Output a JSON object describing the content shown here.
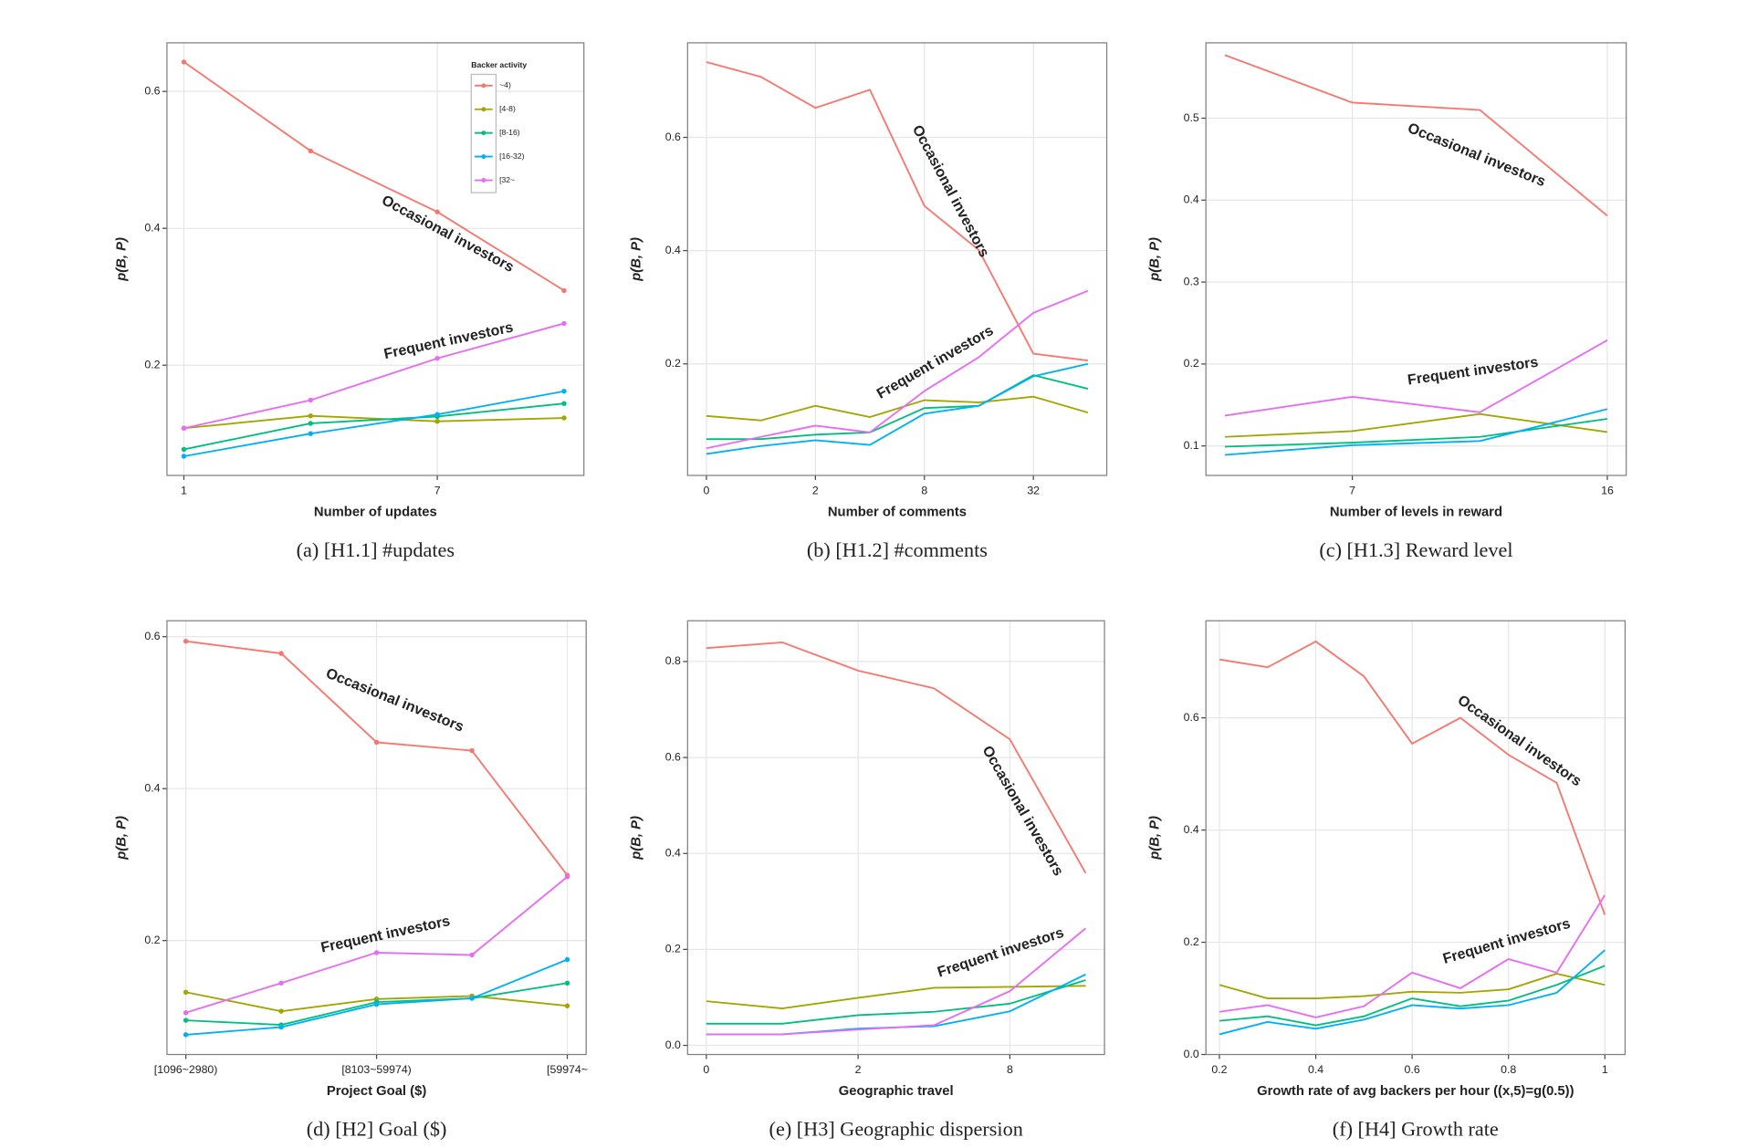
{
  "chart_data": [
    {
      "type": "line",
      "caption": "(a) [H1.1] #updates",
      "xlabel": "Number of updates",
      "ylabel": "p(B, P)",
      "x": [
        1,
        4,
        7,
        10
      ],
      "xlim": [
        0.6,
        10.47
      ],
      "xticks": [
        1,
        7
      ],
      "ylim": [
        0.039,
        0.671
      ],
      "yticks": [
        0.2,
        0.4,
        0.6
      ],
      "grid": true,
      "markers": true,
      "legend": {
        "title": "Backer activity",
        "position": "top-right"
      },
      "annotations": [
        "Occasional investors",
        "Frequent investors"
      ],
      "series": [
        {
          "name": "~4)",
          "color": "#f8766d",
          "values": [
            0.643,
            0.513,
            0.424,
            0.309
          ]
        },
        {
          "name": "[4-8)",
          "color": "#a3a500",
          "values": [
            0.108,
            0.126,
            0.118,
            0.123
          ]
        },
        {
          "name": "[8-16)",
          "color": "#00bf7d",
          "values": [
            0.077,
            0.115,
            0.125,
            0.144
          ]
        },
        {
          "name": "[16-32)",
          "color": "#00b0f6",
          "values": [
            0.067,
            0.1,
            0.128,
            0.162
          ]
        },
        {
          "name": "[32~",
          "color": "#e76bf3",
          "values": [
            0.108,
            0.149,
            0.21,
            0.261
          ]
        }
      ]
    },
    {
      "type": "line",
      "caption": "(b) [H1.2] #comments",
      "xlabel": "Number of comments",
      "ylabel": "p(B, P)",
      "categories": [
        "0",
        null,
        "2",
        null,
        "8",
        null,
        "32",
        null
      ],
      "ylim": [
        0.003,
        0.767
      ],
      "yticks": [
        0.2,
        0.4,
        0.6
      ],
      "grid": true,
      "markers": false,
      "annotations": [
        "Occasional investors",
        "Frequent investors"
      ],
      "series": [
        {
          "color": "#f8766d",
          "values": [
            0.733,
            0.707,
            0.652,
            0.684,
            0.479,
            0.401,
            0.218,
            0.206
          ]
        },
        {
          "color": "#a3a500",
          "values": [
            0.108,
            0.1,
            0.126,
            0.106,
            0.136,
            0.132,
            0.142,
            0.114
          ]
        },
        {
          "color": "#00bf7d",
          "values": [
            0.067,
            0.067,
            0.075,
            0.079,
            0.122,
            0.126,
            0.18,
            0.156
          ]
        },
        {
          "color": "#00b0f6",
          "values": [
            0.041,
            0.055,
            0.065,
            0.057,
            0.112,
            0.126,
            0.178,
            0.2
          ]
        },
        {
          "color": "#e76bf3",
          "values": [
            0.051,
            0.071,
            0.091,
            0.079,
            0.152,
            0.212,
            0.29,
            0.329
          ]
        }
      ]
    },
    {
      "type": "line",
      "caption": "(c) [H1.3] Reward level",
      "xlabel": "Number of levels in reward",
      "ylabel": "p(B, P)",
      "categories": [
        null,
        "7",
        null,
        "16"
      ],
      "ylim": [
        0.064,
        0.592
      ],
      "yticks": [
        0.1,
        0.2,
        0.3,
        0.4,
        0.5
      ],
      "grid": true,
      "markers": false,
      "annotations": [
        "Occasional investors",
        "Frequent investors"
      ],
      "series": [
        {
          "color": "#f8766d",
          "values": [
            0.577,
            0.519,
            0.51,
            0.381
          ]
        },
        {
          "color": "#a3a500",
          "values": [
            0.111,
            0.118,
            0.139,
            0.117
          ]
        },
        {
          "color": "#00bf7d",
          "values": [
            0.099,
            0.104,
            0.111,
            0.133
          ]
        },
        {
          "color": "#00b0f6",
          "values": [
            0.089,
            0.101,
            0.106,
            0.145
          ]
        },
        {
          "color": "#e76bf3",
          "values": [
            0.137,
            0.16,
            0.141,
            0.229
          ]
        }
      ]
    },
    {
      "type": "line",
      "caption": "(d) [H2] Goal ($)",
      "xlabel": "Project Goal ($)",
      "ylabel": "p(B, P)",
      "categories": [
        "[1096~2980)",
        null,
        "[8103~59974)",
        null,
        "[59974~"
      ],
      "ylim": [
        0.05,
        0.621
      ],
      "yticks": [
        0.2,
        0.4,
        0.6
      ],
      "grid": true,
      "markers": true,
      "annotations": [
        "Occasional investors",
        "Frequent investors"
      ],
      "series": [
        {
          "color": "#f8766d",
          "values": [
            0.594,
            0.578,
            0.461,
            0.45,
            0.286
          ]
        },
        {
          "color": "#a3a500",
          "values": [
            0.132,
            0.107,
            0.123,
            0.127,
            0.114
          ]
        },
        {
          "color": "#00bf7d",
          "values": [
            0.095,
            0.089,
            0.119,
            0.124,
            0.144
          ]
        },
        {
          "color": "#00b0f6",
          "values": [
            0.076,
            0.086,
            0.116,
            0.124,
            0.175
          ]
        },
        {
          "color": "#e76bf3",
          "values": [
            0.105,
            0.144,
            0.184,
            0.181,
            0.284
          ]
        }
      ]
    },
    {
      "type": "line",
      "caption": "(e) [H3] Geographic dispersion",
      "xlabel": "Geographic travel",
      "ylabel": "p(B, P)",
      "categories": [
        "0",
        null,
        "2",
        null,
        "8",
        null
      ],
      "ylim": [
        -0.019,
        0.885
      ],
      "yticks": [
        {
          "value": 0,
          "label": "0.0"
        },
        0.2,
        0.4,
        0.6,
        0.8
      ],
      "grid": true,
      "markers": false,
      "annotations": [
        "Occasional investors",
        "Frequent investors"
      ],
      "series": [
        {
          "color": "#f8766d",
          "values": [
            0.828,
            0.84,
            0.781,
            0.744,
            0.638,
            0.359
          ]
        },
        {
          "color": "#a3a500",
          "values": [
            0.092,
            0.077,
            0.099,
            0.12,
            0.122,
            0.124
          ]
        },
        {
          "color": "#00bf7d",
          "values": [
            0.045,
            0.045,
            0.063,
            0.07,
            0.087,
            0.136
          ]
        },
        {
          "color": "#00b0f6",
          "values": [
            0.023,
            0.023,
            0.035,
            0.04,
            0.071,
            0.148
          ]
        },
        {
          "color": "#e76bf3",
          "values": [
            0.023,
            0.023,
            0.033,
            0.042,
            0.113,
            0.244
          ]
        }
      ]
    },
    {
      "type": "line",
      "caption": "(f) [H4] Growth rate",
      "xlabel": "Growth rate of avg backers per hour ((x,5)=g(0.5))",
      "ylabel": "p(B, P)",
      "x": [
        0.2,
        0.3,
        0.4,
        0.5,
        0.6,
        0.7,
        0.8,
        0.9,
        1
      ],
      "xlim": [
        0.172,
        1.042
      ],
      "xticks": [
        0.2,
        0.4,
        0.6,
        0.8,
        1
      ],
      "ylim": [
        0,
        0.773
      ],
      "yticks": [
        {
          "value": 0,
          "label": "0.0"
        },
        0.2,
        0.4,
        0.6
      ],
      "grid": true,
      "markers": false,
      "annotations": [
        "Occasional investors",
        "Frequent investors"
      ],
      "series": [
        {
          "color": "#f8766d",
          "values": [
            0.704,
            0.69,
            0.736,
            0.674,
            0.554,
            0.6,
            0.534,
            0.484,
            0.249
          ]
        },
        {
          "color": "#a3a500",
          "values": [
            0.124,
            0.1,
            0.1,
            0.104,
            0.112,
            0.11,
            0.116,
            0.144,
            0.124
          ]
        },
        {
          "color": "#00bf7d",
          "values": [
            0.06,
            0.068,
            0.052,
            0.068,
            0.1,
            0.086,
            0.096,
            0.124,
            0.158
          ]
        },
        {
          "color": "#00b0f6",
          "values": [
            0.036,
            0.058,
            0.046,
            0.062,
            0.088,
            0.082,
            0.088,
            0.11,
            0.186
          ]
        },
        {
          "color": "#e76bf3",
          "values": [
            0.076,
            0.088,
            0.066,
            0.086,
            0.146,
            0.118,
            0.17,
            0.146,
            0.284
          ]
        }
      ]
    }
  ]
}
